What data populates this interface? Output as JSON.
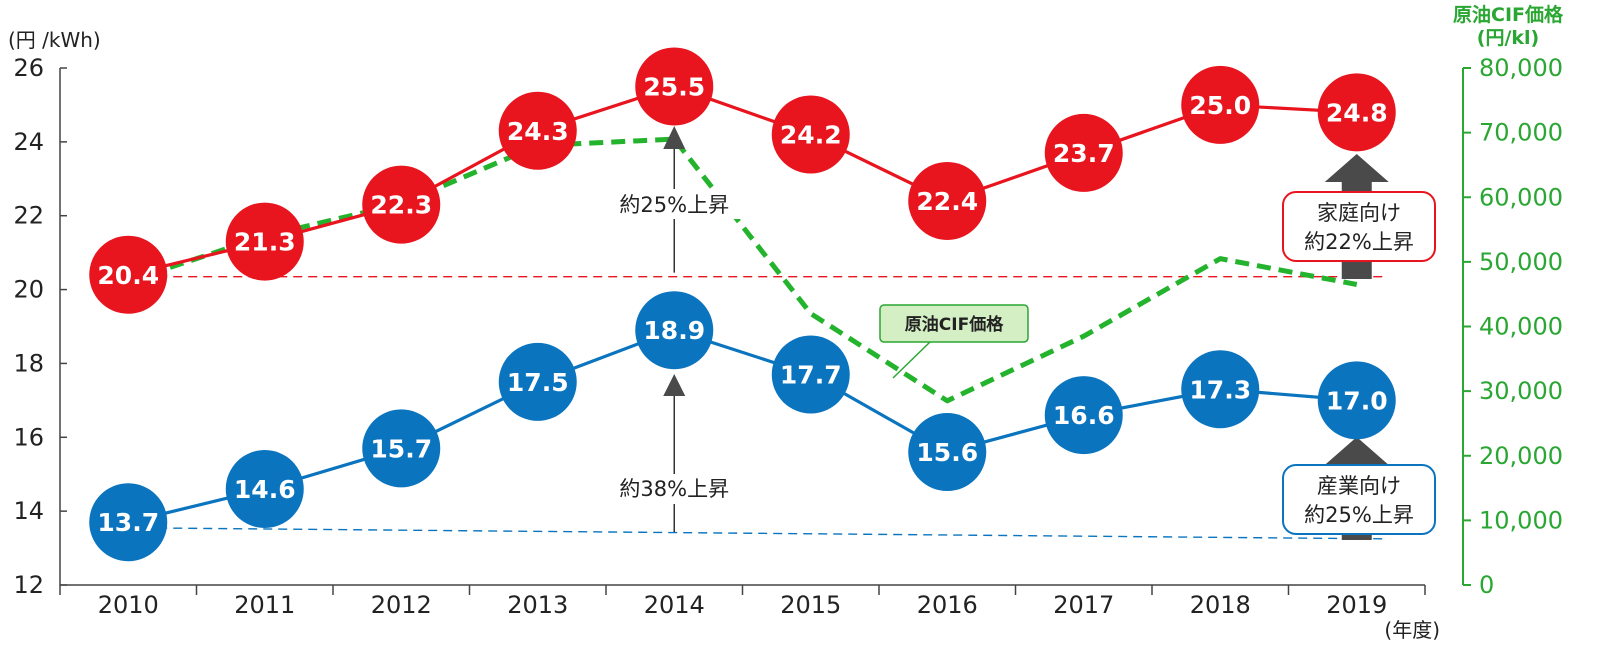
{
  "chart_data": {
    "type": "line",
    "x": [
      "2010",
      "2011",
      "2012",
      "2013",
      "2014",
      "2015",
      "2016",
      "2017",
      "2018",
      "2019"
    ],
    "xlabel": "(年度)",
    "ylabel": "(円 /kWh)",
    "ylim": [
      12,
      26
    ],
    "yticks": [
      12,
      14,
      16,
      18,
      20,
      22,
      24,
      26
    ],
    "y2label": [
      "原油CIF価格",
      "(円/kl)"
    ],
    "y2lim": [
      0,
      80000
    ],
    "y2ticks": [
      "0",
      "10,000",
      "20,000",
      "30,000",
      "40,000",
      "50,000",
      "60,000",
      "70,000",
      "80,000"
    ],
    "y2tick_values": [
      0,
      10000,
      20000,
      30000,
      40000,
      50000,
      60000,
      70000,
      80000
    ],
    "series": [
      {
        "key": "household",
        "axis": "left",
        "color": "#e8141e",
        "values": [
          20.4,
          21.3,
          22.3,
          24.3,
          25.5,
          24.2,
          22.4,
          23.7,
          25.0,
          24.8
        ],
        "labels": [
          "20.4",
          "21.3",
          "22.3",
          "24.3",
          "25.5",
          "24.2",
          "22.4",
          "23.7",
          "25.0",
          "24.8"
        ]
      },
      {
        "key": "industrial",
        "axis": "left",
        "color": "#0a74bf",
        "values": [
          13.7,
          14.6,
          15.7,
          17.5,
          18.9,
          17.7,
          15.6,
          16.6,
          17.3,
          17.0
        ],
        "labels": [
          "13.7",
          "14.6",
          "15.7",
          "17.5",
          "18.9",
          "17.7",
          "15.6",
          "16.6",
          "17.3",
          "17.0"
        ]
      },
      {
        "key": "crude",
        "axis": "right",
        "name": "原油CIF価格",
        "color": "#24b32c",
        "values": [
          47000,
          54000,
          59000,
          68000,
          69000,
          42000,
          28500,
          38500,
          50500,
          46500
        ]
      }
    ],
    "reference_lines": {
      "household_baseline": 20.35,
      "industrial_baseline_start": 13.55,
      "industrial_baseline_end": 13.25
    },
    "annotations": {
      "rise_household": "約25%上昇",
      "rise_industrial": "約38%上昇",
      "household_box": [
        "家庭向け",
        "約22%上昇"
      ],
      "industrial_box": [
        "産業向け",
        "約25%上昇"
      ]
    },
    "grid": false,
    "legend_position": "center"
  }
}
